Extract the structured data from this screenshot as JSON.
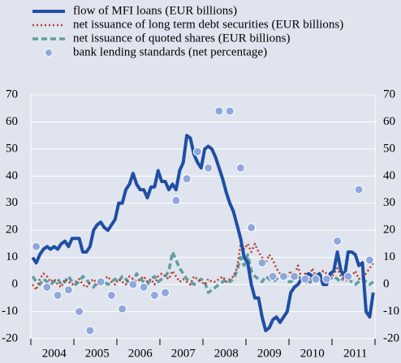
{
  "chart_data": {
    "type": "line",
    "categories": [
      null,
      null,
      null,
      null,
      null,
      null,
      "2004",
      null,
      null,
      null,
      null,
      null,
      null,
      null,
      null,
      null,
      null,
      null,
      "2005",
      null,
      null,
      null,
      null,
      null,
      null,
      null,
      null,
      null,
      null,
      null,
      "2006",
      null,
      null,
      null,
      null,
      null,
      null,
      null,
      null,
      null,
      null,
      null,
      "2007",
      null,
      null,
      null,
      null,
      null,
      null,
      null,
      null,
      null,
      null,
      null,
      "2008",
      null,
      null,
      null,
      null,
      null,
      null,
      null,
      null,
      null,
      null,
      null,
      "2009",
      null,
      null,
      null,
      null,
      null,
      null,
      null,
      null,
      null,
      null,
      null,
      "2010",
      null,
      null,
      null,
      null,
      null,
      null,
      null,
      null,
      null,
      null,
      null,
      "2011",
      null,
      null,
      null,
      null,
      null
    ],
    "series": [
      {
        "name": "flow of MFI loans (EUR billions)",
        "color": "#1f4fa3",
        "style": "solid",
        "values": [
          10,
          8,
          11,
          13,
          14,
          13,
          14,
          13,
          15,
          16,
          14,
          17,
          17,
          17,
          12,
          12,
          14,
          20,
          22,
          23,
          21,
          20,
          22,
          24,
          30,
          30,
          35,
          37,
          41,
          37,
          35,
          35,
          32,
          36,
          36,
          42,
          38,
          38,
          35,
          37,
          35,
          42,
          45,
          55,
          54,
          48,
          45,
          43,
          50,
          51,
          50,
          47,
          43,
          39,
          34,
          30,
          27,
          22,
          17,
          10,
          8,
          0,
          -5,
          -5,
          -12,
          -17,
          -16,
          -13,
          -12,
          -14,
          -12,
          -10,
          -3,
          -1,
          0,
          2,
          3,
          4,
          3,
          3,
          4,
          0,
          0,
          4,
          5,
          12,
          5,
          3,
          12,
          12,
          11,
          7,
          8,
          -10,
          -12,
          -3
        ]
      },
      {
        "name": "net issuance of long term debt securities (EUR billions)",
        "color": "#c0392b",
        "style": "dotted",
        "values": [
          0,
          -2,
          2,
          4,
          3,
          1,
          2,
          0,
          -1,
          2,
          1,
          0,
          1,
          2,
          0,
          -1,
          1,
          2,
          0,
          1,
          2,
          3,
          1,
          0,
          2,
          1,
          0,
          3,
          2,
          1,
          2,
          3,
          1,
          2,
          0,
          3,
          4,
          3,
          2,
          5,
          3,
          1,
          2,
          1,
          0,
          3,
          2,
          1,
          0,
          2,
          1,
          1,
          2,
          3,
          1,
          2,
          3,
          6,
          15,
          13,
          15,
          12,
          15,
          12,
          10,
          8,
          11,
          9,
          6,
          4,
          2,
          3,
          5,
          3,
          7,
          2,
          4,
          1,
          6,
          3,
          2,
          5,
          4,
          2,
          4,
          6,
          3,
          2,
          1,
          3,
          5,
          2,
          3,
          4,
          6,
          8
        ]
      },
      {
        "name": "net issuance of quoted shares (EUR billions)",
        "color": "#5f9ea0",
        "style": "dashed",
        "values": [
          3,
          1,
          0,
          2,
          1,
          0,
          1,
          2,
          0,
          1,
          3,
          1,
          0,
          1,
          3,
          2,
          0,
          -1,
          1,
          2,
          1,
          0,
          1,
          2,
          1,
          3,
          2,
          0,
          1,
          4,
          2,
          1,
          0,
          2,
          3,
          1,
          2,
          3,
          5,
          12,
          9,
          6,
          4,
          2,
          1,
          0,
          1,
          2,
          1,
          -3,
          -2,
          -1,
          0,
          1,
          2,
          1,
          2,
          5,
          10,
          7,
          11,
          5,
          3,
          2,
          1,
          3,
          2,
          1,
          2,
          3,
          2,
          1,
          1,
          2,
          3,
          2,
          1,
          0,
          2,
          3,
          1,
          2,
          3,
          2,
          3,
          2,
          1,
          3,
          2,
          1,
          0,
          1,
          2,
          1,
          0,
          1
        ]
      },
      {
        "name": "bank lending standards (net percentage)",
        "color": "#8fa7dd",
        "style": "markers",
        "values": [
          null,
          14,
          null,
          null,
          -1,
          null,
          null,
          -4,
          null,
          null,
          -2,
          null,
          null,
          -10,
          null,
          null,
          -17,
          null,
          null,
          1,
          null,
          null,
          -4,
          null,
          null,
          -9,
          null,
          null,
          0,
          null,
          null,
          -1,
          null,
          null,
          -4,
          null,
          null,
          -3,
          null,
          null,
          31,
          null,
          null,
          39,
          null,
          null,
          49,
          null,
          null,
          43,
          null,
          null,
          64,
          null,
          null,
          64,
          null,
          null,
          43,
          null,
          null,
          21,
          null,
          null,
          8,
          null,
          null,
          3,
          null,
          null,
          3,
          null,
          null,
          3,
          null,
          null,
          2,
          null,
          null,
          2,
          null,
          null,
          2,
          null,
          null,
          16,
          null,
          null,
          3,
          null,
          null,
          35,
          null,
          null,
          9,
          null
        ]
      }
    ],
    "ylim": [
      -20,
      70
    ],
    "yticks": [
      -20,
      -10,
      0,
      10,
      20,
      30,
      40,
      50,
      60,
      70
    ],
    "y2lim": [
      -20,
      70
    ],
    "y2ticks": [
      -20,
      -10,
      0,
      10,
      20,
      30,
      40,
      50,
      60,
      70
    ],
    "grid": true
  }
}
